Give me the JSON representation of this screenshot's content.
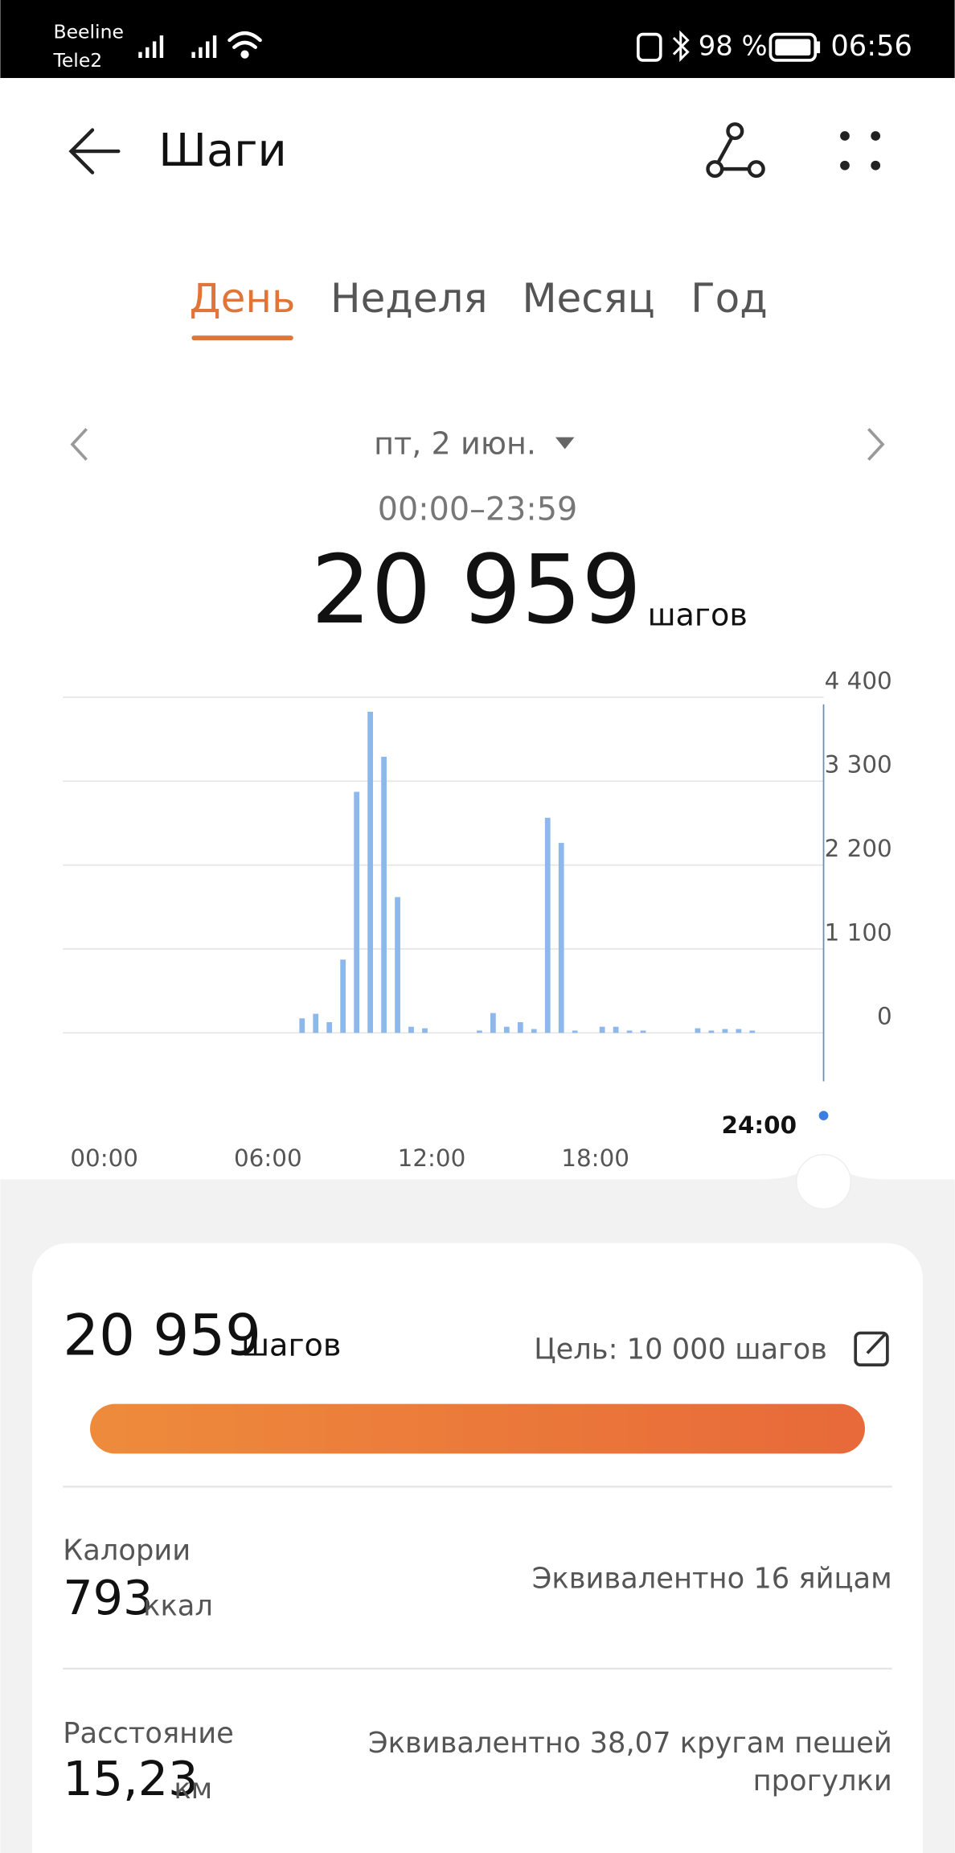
{
  "status_bar": {
    "carrier_1": "Beeline",
    "carrier_2": "Tele2",
    "battery": "98 %",
    "time": "06:56"
  },
  "header": {
    "title": "Шаги"
  },
  "tabs": [
    "День",
    "Неделя",
    "Месяц",
    "Год"
  ],
  "date": "пт, 2 июн.",
  "time_range": "00:00–23:59",
  "total_steps": "20 959",
  "steps_unit": "шагов",
  "chart_data": {
    "type": "bar",
    "categories": [
      "00:00",
      null,
      null,
      null,
      null,
      null,
      null,
      null,
      null,
      null,
      null,
      null,
      "06:00",
      null,
      null,
      null,
      null,
      null,
      null,
      null,
      null,
      null,
      null,
      null,
      "12:00",
      null,
      null,
      null,
      null,
      null,
      null,
      null,
      null,
      null,
      null,
      null,
      "18:00",
      null,
      null,
      null,
      null,
      null,
      null,
      null,
      null,
      null,
      null,
      null
    ],
    "values": [
      0,
      0,
      0,
      0,
      0,
      0,
      0,
      0,
      0,
      0,
      0,
      0,
      0,
      0,
      190,
      250,
      140,
      960,
      3160,
      4210,
      3620,
      1780,
      80,
      60,
      0,
      0,
      0,
      30,
      260,
      80,
      140,
      50,
      2820,
      2490,
      30,
      0,
      80,
      80,
      30,
      30,
      0,
      0,
      0,
      60,
      30,
      50,
      50,
      30
    ],
    "color": "#8cb8ec",
    "ylim": [
      0,
      4400
    ],
    "yticks": [
      {
        "value": 0,
        "label": "0"
      },
      {
        "value": 1100,
        "label": "1 100"
      },
      {
        "value": 2200,
        "label": "2 200"
      },
      {
        "value": 3300,
        "label": "3 300"
      },
      {
        "value": 4400,
        "label": "4 400"
      }
    ],
    "grid": true,
    "cursor_label": "24:00"
  },
  "summary": {
    "steps": "20 959",
    "steps_unit": "шагов",
    "goal": "Цель: 10 000 шагов",
    "calories_label": "Калории",
    "calories": "793",
    "calories_unit": "ккал",
    "calories_equivalent": "Эквивалентно 16 яйцам",
    "distance_label": "Расстояние",
    "distance": "15,23",
    "distance_unit": "км",
    "distance_equivalent": [
      "Эквивалентно 38,07 кругам пешей",
      "прогулки"
    ]
  }
}
